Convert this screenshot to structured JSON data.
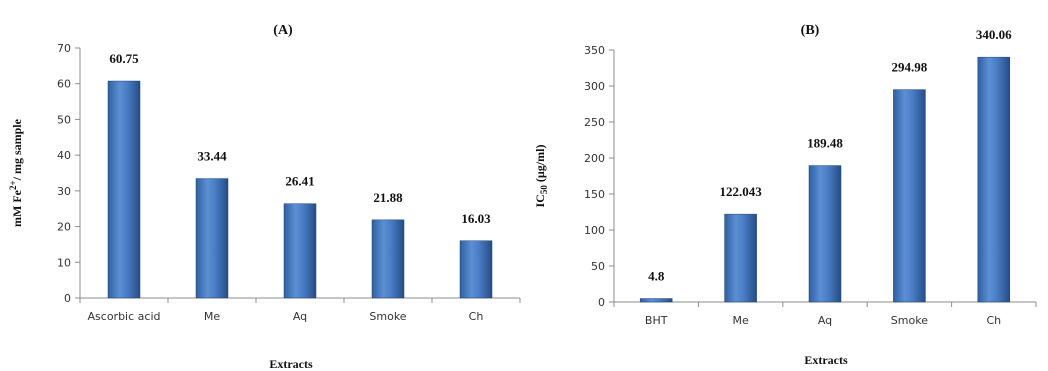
{
  "chart_data": [
    {
      "type": "bar",
      "title": "(A)",
      "xlabel": "Extracts",
      "ylabel_main": "mM Fe",
      "ylabel_sup": "2+",
      "ylabel_rest": "/ mg sample",
      "categories": [
        "Ascorbic acid",
        "Me",
        "Aq",
        "Smoke",
        "Ch"
      ],
      "values": [
        60.75,
        33.44,
        26.41,
        21.88,
        16.03
      ],
      "data_labels": [
        "60.75",
        "33.44",
        "26.41",
        "21.88",
        "16.03"
      ],
      "ylim": [
        0,
        70
      ],
      "yticks": [
        0,
        10,
        20,
        30,
        40,
        50,
        60,
        70
      ],
      "grid": false,
      "legend": "none",
      "bar_color": "#4a7cc4"
    },
    {
      "type": "bar",
      "title": "(B)",
      "xlabel": "Extracts",
      "ylabel_main": "IC",
      "ylabel_sub": "50",
      "ylabel_rest": " (µg/ml)",
      "categories": [
        "BHT",
        "Me",
        "Aq",
        "Smoke",
        "Ch"
      ],
      "values": [
        4.8,
        122.043,
        189.48,
        294.98,
        340.06
      ],
      "data_labels": [
        "4.8",
        "122.043",
        "189.48",
        "294.98",
        "340.06"
      ],
      "ylim": [
        0,
        350
      ],
      "yticks": [
        0,
        50,
        100,
        150,
        200,
        250,
        300,
        350
      ],
      "grid": false,
      "legend": "none",
      "bar_color": "#4a7cc4"
    }
  ]
}
